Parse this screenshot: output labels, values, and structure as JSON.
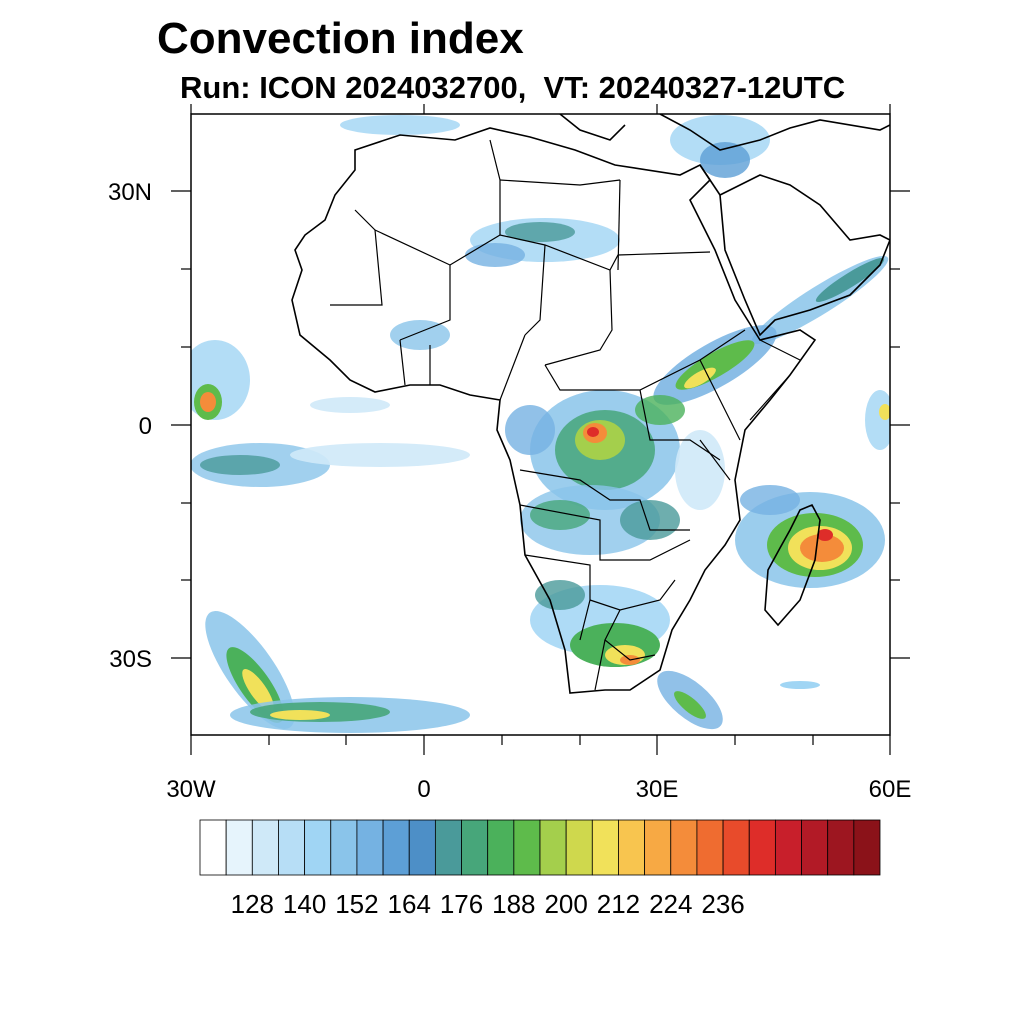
{
  "title": "Convection index",
  "subtitle": "Run: ICON 2024032700,  VT: 20240327-12UTC",
  "axes": {
    "lat_labels": [
      "30N",
      "0",
      "30S"
    ],
    "lon_labels": [
      "30W",
      "0",
      "30E",
      "60E"
    ]
  },
  "colorbar": {
    "labels": [
      "128",
      "140",
      "152",
      "164",
      "176",
      "188",
      "200",
      "212",
      "224",
      "236"
    ],
    "colors": [
      "#ffffff",
      "#e6f4fc",
      "#cfe9f8",
      "#b7def6",
      "#a0d5f4",
      "#8ac4ea",
      "#75b2e2",
      "#5d9fd6",
      "#4d8fc7",
      "#4a9a9a",
      "#47a67a",
      "#4bb15b",
      "#5ebb4b",
      "#a4cf4c",
      "#cfd84d",
      "#f1e15a",
      "#f8c54f",
      "#f7a944",
      "#f48c3a",
      "#ef6c30",
      "#e84b2b",
      "#de2d29",
      "#c81f2b",
      "#b21a26",
      "#9d1620",
      "#8b1219"
    ]
  }
}
